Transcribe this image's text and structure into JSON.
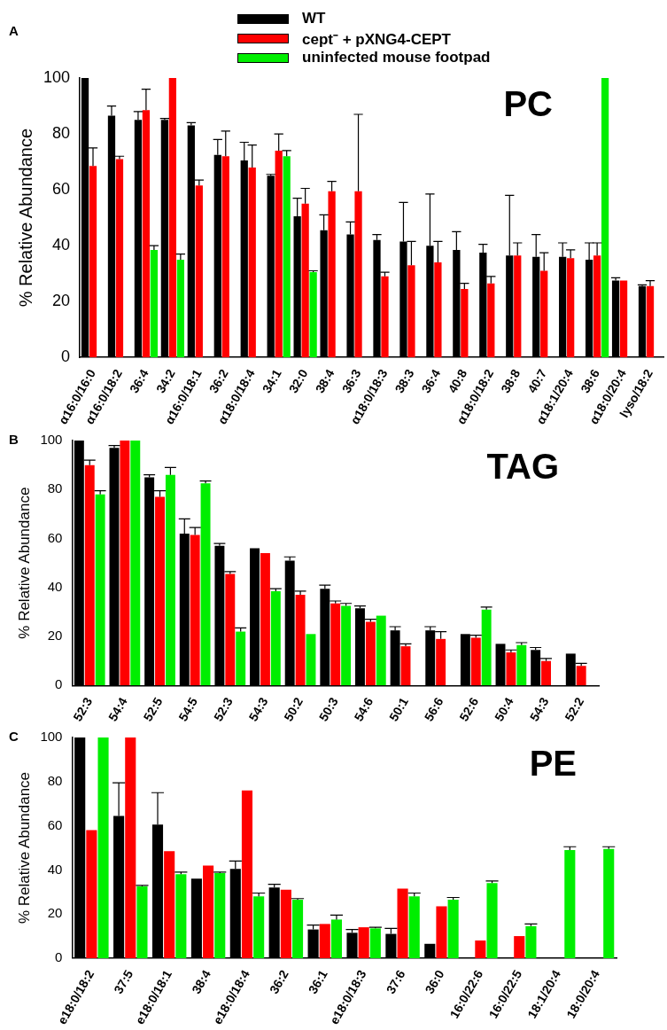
{
  "chart_data": [
    {
      "type": "bar",
      "title": "PC",
      "ylabel": "% Relative Abundance",
      "annotations": [
        "A"
      ],
      "legend": "top",
      "grid": false,
      "categories": [
        "α16:0/16:0",
        "α16:0/18:2",
        "36:4",
        "34:2",
        "α16:0/18:1",
        "36:2",
        "α18:0/18:4",
        "34:1",
        "32:0",
        "38:4",
        "36:3",
        "α18:0/18:3",
        "38:3",
        "36:4",
        "40:8",
        "α18:0/18:2",
        "38:8",
        "40:7",
        "α18:1/20:4",
        "38:6",
        "α18:0/20:4",
        "lyso/18:2"
      ],
      "ylim": [
        0,
        100
      ],
      "yticks": [
        0,
        20,
        40,
        60,
        80,
        100
      ],
      "series": [
        {
          "name": "WT",
          "color": "#000000",
          "values": [
            100,
            86.5,
            85,
            85,
            83,
            72.5,
            70.5,
            65,
            50.5,
            45.5,
            44,
            42,
            41.5,
            40,
            38.5,
            37.5,
            36.5,
            36,
            36,
            35,
            27.5,
            25.5
          ],
          "errors": [
            null,
            [
              86.5,
              90
            ],
            [
              85,
              88
            ],
            [
              85,
              85.5
            ],
            [
              83,
              84
            ],
            [
              72.5,
              78
            ],
            [
              70.5,
              77
            ],
            [
              65,
              65.5
            ],
            [
              50.5,
              57
            ],
            [
              45.5,
              51
            ],
            [
              44,
              48.5
            ],
            [
              42,
              44
            ],
            [
              41.5,
              55.5
            ],
            [
              40,
              58.5
            ],
            [
              38.5,
              45
            ],
            [
              37.5,
              40.5
            ],
            [
              36.5,
              58
            ],
            [
              36,
              44
            ],
            [
              36,
              41
            ],
            [
              35,
              41
            ],
            [
              27.5,
              28.5
            ],
            [
              25.5,
              26
            ]
          ]
        },
        {
          "name": "cept⁻ + pXNG4-CEPT",
          "color": "#ff0000",
          "values": [
            68.5,
            71,
            88.5,
            100,
            61.5,
            72,
            68,
            74,
            55,
            59.5,
            59.5,
            29,
            33,
            34,
            24.5,
            26.5,
            36.5,
            31,
            35.5,
            36.5,
            27.5,
            25.5
          ],
          "errors": [
            [
              68.5,
              75
            ],
            [
              71,
              72
            ],
            [
              88.5,
              96
            ],
            null,
            [
              61.5,
              63.5
            ],
            [
              72,
              81
            ],
            [
              68,
              76
            ],
            [
              74,
              80
            ],
            [
              55,
              60.5
            ],
            [
              59.5,
              63
            ],
            [
              59.5,
              87
            ],
            [
              29,
              30.5
            ],
            [
              33,
              41.5
            ],
            [
              34,
              41.5
            ],
            [
              24.5,
              26.5
            ],
            [
              26.5,
              29
            ],
            [
              36.5,
              41
            ],
            [
              31,
              37.5
            ],
            [
              35.5,
              38.5
            ],
            [
              36.5,
              41
            ],
            null,
            [
              25.5,
              27.5
            ]
          ]
        },
        {
          "name": "uninfected mouse footpad",
          "color": "#00ee00",
          "values": [
            null,
            null,
            38.5,
            35,
            null,
            null,
            null,
            72,
            30.5,
            null,
            null,
            null,
            null,
            null,
            null,
            null,
            null,
            null,
            null,
            100,
            null,
            null
          ],
          "errors": [
            null,
            null,
            [
              38.5,
              40
            ],
            [
              35,
              37
            ],
            null,
            null,
            null,
            [
              72,
              74
            ],
            [
              30.5,
              31
            ],
            null,
            null,
            null,
            null,
            null,
            null,
            null,
            null,
            null,
            null,
            null,
            null,
            null
          ]
        }
      ]
    },
    {
      "type": "bar",
      "title": "TAG",
      "ylabel": "% Relative Abundance",
      "annotations": [
        "B"
      ],
      "grid": false,
      "categories": [
        "52:3",
        "54:4",
        "52:5",
        "54:5",
        "52:3",
        "54:3",
        "50:2",
        "50:3",
        "54:6",
        "50:1",
        "56:6",
        "52:6",
        "50:4",
        "54:3",
        "52:2"
      ],
      "ylim": [
        0,
        100
      ],
      "yticks": [
        0,
        20,
        40,
        60,
        80,
        100
      ],
      "series": [
        {
          "color": "#000000",
          "values": [
            100,
            97,
            85,
            62,
            57,
            56,
            51,
            39.5,
            31.5,
            22.5,
            22.5,
            21,
            17,
            14.5,
            13
          ],
          "errors": [
            null,
            [
              97,
              98
            ],
            [
              85,
              86
            ],
            [
              62,
              68
            ],
            [
              57,
              58
            ],
            null,
            [
              51,
              52.5
            ],
            [
              39.5,
              41
            ],
            [
              31.5,
              32.5
            ],
            [
              22.5,
              24
            ],
            [
              22.5,
              24
            ],
            null,
            null,
            [
              14.5,
              15.5
            ],
            null
          ]
        },
        {
          "color": "#ff0000",
          "values": [
            90,
            100,
            77,
            61.5,
            45.5,
            54,
            37,
            33.5,
            26,
            16,
            19,
            19.5,
            13.5,
            10,
            8
          ],
          "errors": [
            [
              90,
              92
            ],
            null,
            [
              77,
              79.5
            ],
            [
              61.5,
              64.5
            ],
            [
              45.5,
              46.5
            ],
            null,
            [
              37,
              38.5
            ],
            [
              33.5,
              34.5
            ],
            [
              26,
              27
            ],
            [
              16,
              17
            ],
            [
              19,
              22
            ],
            [
              19.5,
              20.5
            ],
            [
              13.5,
              14.5
            ],
            [
              10,
              11
            ],
            [
              8,
              9
            ]
          ]
        },
        {
          "color": "#00ee00",
          "values": [
            78,
            100,
            86,
            82.5,
            22,
            38.5,
            21,
            32.5,
            28.5,
            null,
            null,
            31,
            16.5,
            null,
            null
          ],
          "errors": [
            [
              78,
              79.5
            ],
            null,
            [
              86,
              89
            ],
            [
              82.5,
              83.5
            ],
            [
              22,
              23.5
            ],
            [
              38.5,
              39.5
            ],
            null,
            [
              32.5,
              33.5
            ],
            null,
            null,
            null,
            [
              31,
              32
            ],
            [
              16.5,
              17.5
            ],
            null,
            null
          ]
        }
      ]
    },
    {
      "type": "bar",
      "title": "PE",
      "ylabel": "% Relative Abundance",
      "annotations": [
        "C"
      ],
      "grid": false,
      "categories": [
        "e18:0/18:2",
        "37:5",
        "e18:0/18:1",
        "38:4",
        "e18:0/18:4",
        "36:2",
        "36:1",
        "e18:0/18:3",
        "37:6",
        "36:0",
        "16:0/22:6",
        "16:0/22:5",
        "18:1/20:4",
        "18:0/20:4"
      ],
      "ylim": [
        0,
        100
      ],
      "yticks": [
        0,
        20,
        40,
        60,
        80,
        100
      ],
      "series": [
        {
          "color": "#000000",
          "values": [
            100,
            64.5,
            60.5,
            36,
            40.5,
            32,
            13,
            11.5,
            11,
            6.5,
            null,
            null,
            null,
            null
          ],
          "errors": [
            null,
            [
              64.5,
              79.5
            ],
            [
              60.5,
              75
            ],
            null,
            [
              40.5,
              44
            ],
            [
              32,
              33.5
            ],
            [
              13,
              15
            ],
            [
              11.5,
              13
            ],
            [
              11,
              13.5
            ],
            null,
            null,
            null,
            null,
            null
          ]
        },
        {
          "color": "#ff0000",
          "values": [
            58,
            100,
            48.5,
            42,
            76,
            31,
            15.5,
            14,
            31.5,
            23.5,
            8,
            10,
            null,
            null
          ]
        },
        {
          "color": "#00ee00",
          "values": [
            100,
            32.5,
            38,
            38.5,
            28,
            26.5,
            17.5,
            13.5,
            28,
            26.5,
            34,
            14.5,
            49,
            49.5
          ],
          "errors": [
            null,
            [
              32.5,
              33
            ],
            [
              38,
              39
            ],
            [
              38.5,
              39
            ],
            [
              28,
              29.5
            ],
            [
              26.5,
              27
            ],
            [
              17.5,
              19.5
            ],
            [
              13.5,
              14
            ],
            [
              28,
              29.5
            ],
            [
              26.5,
              27.5
            ],
            [
              34,
              35
            ],
            [
              14.5,
              15.5
            ],
            [
              49,
              50.5
            ],
            [
              49.5,
              50.5
            ]
          ]
        }
      ]
    }
  ]
}
